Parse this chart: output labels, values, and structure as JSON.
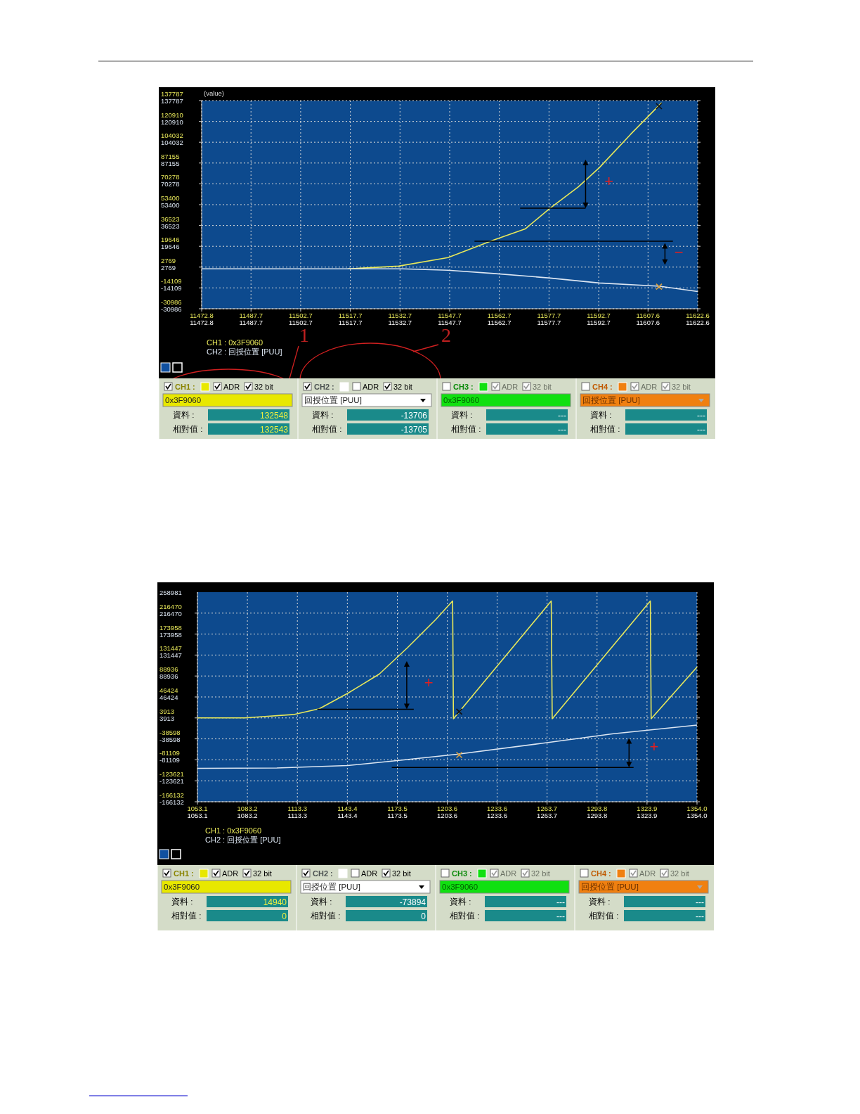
{
  "chart_data": [
    {
      "type": "line",
      "xlim": [
        11472.8,
        11622.6
      ],
      "ylim": [
        -30986,
        137787
      ],
      "xticks": [
        11472.8,
        11487.7,
        11502.7,
        11517.7,
        11532.7,
        11547.7,
        11562.7,
        11577.7,
        11592.7,
        11607.6,
        11622.6
      ],
      "yticks": [
        -30986,
        -14109,
        2769,
        19646,
        36523,
        53400,
        70278,
        87155,
        104032,
        120910,
        137787
      ],
      "x2lim": [
        11472.8,
        11622.6
      ],
      "x2ticks": [
        11472.8,
        11487.7,
        11502.7,
        11517.7,
        11532.7,
        11547.7,
        11562.7,
        11577.7,
        11592.7,
        11607.6,
        11622.6
      ],
      "y2lim": [
        -30986,
        137787
      ],
      "y2ticks": [
        -30986,
        -14109,
        2769,
        19646,
        36523,
        53400,
        70278,
        87155,
        104032,
        120910,
        137787
      ],
      "grid": true,
      "legend": "bottom left",
      "series": [
        {
          "name": "CH1 : 0x3F9060",
          "color": "#e8e85a",
          "x": [
            11516.9,
            11532.3,
            11547.2,
            11561.0,
            11570.5,
            11578.0,
            11586.5,
            11592.9,
            11602.4,
            11611.7
          ],
          "values": [
            1340,
            3600,
            10500,
            24800,
            33700,
            50500,
            67700,
            83400,
            110600,
            136000
          ]
        },
        {
          "name": "CH2 : 回授位置 [PUU]",
          "color": "#dce6f2",
          "axis": "y2",
          "x": [
            11472.8,
            11533.4,
            11547.2,
            11561.0,
            11578.0,
            11592.9,
            11611.1,
            11622.6
          ],
          "values": [
            1340,
            1340,
            200,
            -2380,
            -6100,
            -10100,
            -12700,
            -17000
          ]
        }
      ],
      "annotations": [
        "+",
        "−",
        "1",
        "2",
        "(value)",
        "CH1 :",
        "ADR",
        "32 bit",
        "0x3F9060",
        "資料 :",
        "132548",
        "相對值 :",
        "132543",
        "CH2 :",
        "ADR",
        "32 bit",
        "回授位置 [PUU]",
        "資料 :",
        "-13706",
        "相對值 :",
        "-13705",
        "CH3 :",
        "ADR",
        "32 bit",
        "0x3F9060",
        "資料 :",
        "---",
        "相對值 :",
        "---",
        "CH4 :",
        "ADR",
        "32 bit",
        "回授位置 [PUU]",
        "資料 :",
        "---",
        "相對值 :",
        "---"
      ]
    },
    {
      "type": "line",
      "xlim": [
        1053.1,
        1354.0
      ],
      "ylim": [
        -166132,
        258981
      ],
      "xticks": [
        1053.1,
        1083.2,
        1113.3,
        1143.4,
        1173.5,
        1203.6,
        1233.6,
        1263.7,
        1293.8,
        1323.9,
        {
          "value": 1354.0,
          "label": "1354.0"
        }
      ],
      "yticks": [
        -166132,
        -123621,
        -81109,
        -38598,
        3913,
        46424,
        88936,
        131447,
        173958,
        216470
      ],
      "x2lim": [
        1053.1,
        1354.0
      ],
      "x2ticks": [
        1053.1,
        1083.2,
        1113.3,
        1143.4,
        1173.5,
        1203.6,
        1233.6,
        1263.7,
        1293.8,
        1323.9,
        {
          "value": 1354.0,
          "label": "1354.0"
        }
      ],
      "y2lim": [
        -166132,
        258981
      ],
      "y2ticks": [
        -166132,
        -123621,
        -81109,
        -38598,
        3913,
        46424,
        88936,
        131447,
        173958,
        216470,
        258981
      ],
      "grid": true,
      "legend": "bottom left",
      "series": [
        {
          "name": "CH1 : 0x3F9060",
          "color": "#e8e85a",
          "x": [
            1053.1,
            1081.8,
            1111.6,
            1126.5,
            1143.5,
            1162.6,
            1179.6,
            1196.6,
            1206.8,
            1207.3,
            1266.2,
            1266.8,
            1325.9,
            1326.4,
            1354.0
          ],
          "values": [
            3913,
            3913,
            11000,
            22600,
            53600,
            92800,
            146300,
            203300,
            241100,
            2200,
            241100,
            2200,
            241100,
            2200,
            107000
          ]
        },
        {
          "name": "CH2 : 回授位置 [PUU]",
          "color": "#dce6f2",
          "axis": "y2",
          "x": [
            1053.1,
            1100.9,
            1143.5,
            1175.4,
            1209.4,
            1260.4,
            1302.9,
            1354.0
          ],
          "values": [
            -98400,
            -97700,
            -92700,
            -82000,
            -69900,
            -47700,
            -28500,
            -10600
          ]
        }
      ],
      "annotations": [
        "+",
        "+",
        "CH1 :",
        "ADR",
        "32 bit",
        "0x3F9060",
        "資料 :",
        "14940",
        "相對值 :",
        "0",
        "CH2 :",
        "ADR",
        "32 bit",
        "回授位置 [PUU]",
        "資料 :",
        "-73894",
        "相對值 :",
        "0",
        "CH3 :",
        "ADR",
        "32 bit",
        "0x3F9060",
        "資料 :",
        "---",
        "相對值 :",
        "---",
        "CH4 :",
        "ADR",
        "32 bit",
        "回授位置 [PUU]",
        "資料 :",
        "---",
        "相對值 :",
        "---"
      ]
    }
  ]
}
